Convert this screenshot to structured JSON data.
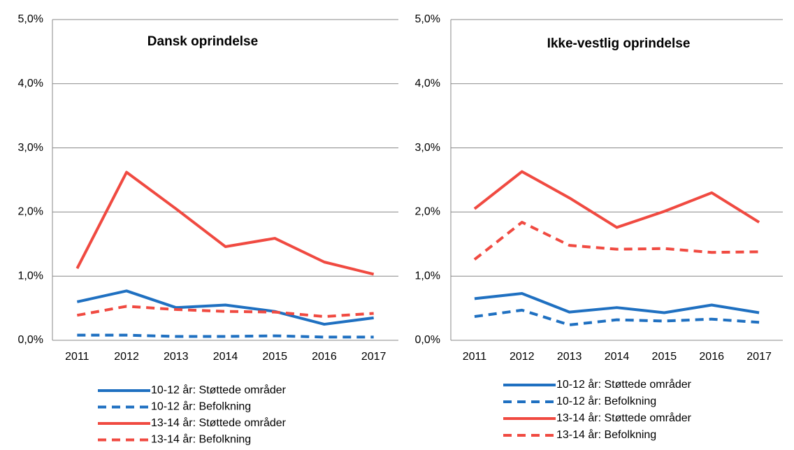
{
  "chart_data": [
    {
      "type": "line",
      "title": "Dansk oprindelse",
      "categories": [
        "2011",
        "2012",
        "2013",
        "2014",
        "2015",
        "2016",
        "2017"
      ],
      "series": [
        {
          "name": "10-12 år: Støttede områder",
          "color": "#1f70c1",
          "dashed": false,
          "values": [
            0.6,
            0.77,
            0.51,
            0.55,
            0.45,
            0.25,
            0.35
          ]
        },
        {
          "name": "10-12 år: Befolkning",
          "color": "#1f70c1",
          "dashed": true,
          "values": [
            0.08,
            0.08,
            0.06,
            0.06,
            0.07,
            0.05,
            0.05
          ]
        },
        {
          "name": "13-14 år: Støttede områder",
          "color": "#f04a41",
          "dashed": false,
          "values": [
            1.12,
            2.62,
            2.05,
            1.46,
            1.59,
            1.22,
            1.03
          ]
        },
        {
          "name": "13-14 år: Befolkning",
          "color": "#f04a41",
          "dashed": true,
          "values": [
            0.39,
            0.53,
            0.48,
            0.45,
            0.44,
            0.37,
            0.42
          ]
        }
      ],
      "ylim": [
        0,
        5
      ],
      "yticks": [
        {
          "value": 0,
          "label": "0,0%"
        },
        {
          "value": 1,
          "label": "1,0%"
        },
        {
          "value": 2,
          "label": "2,0%"
        },
        {
          "value": 3,
          "label": "3,0%"
        },
        {
          "value": 4,
          "label": "4,0%"
        },
        {
          "value": 5,
          "label": "5,0%"
        }
      ],
      "grid": true,
      "legend": "bottom"
    },
    {
      "type": "line",
      "title": "Ikke-vestlig oprindelse",
      "categories": [
        "2011",
        "2012",
        "2013",
        "2014",
        "2015",
        "2016",
        "2017"
      ],
      "series": [
        {
          "name": "10-12 år: Støttede områder",
          "color": "#1f70c1",
          "dashed": false,
          "values": [
            0.65,
            0.73,
            0.44,
            0.51,
            0.43,
            0.55,
            0.43
          ]
        },
        {
          "name": "10-12 år: Befolkning",
          "color": "#1f70c1",
          "dashed": true,
          "values": [
            0.37,
            0.47,
            0.24,
            0.32,
            0.3,
            0.33,
            0.28
          ]
        },
        {
          "name": "13-14 år: Støttede områder",
          "color": "#f04a41",
          "dashed": false,
          "values": [
            2.05,
            2.63,
            2.22,
            1.76,
            2.01,
            2.3,
            1.84
          ]
        },
        {
          "name": "13-14 år: Befolkning",
          "color": "#f04a41",
          "dashed": true,
          "values": [
            1.26,
            1.84,
            1.48,
            1.42,
            1.43,
            1.37,
            1.38
          ]
        }
      ],
      "ylim": [
        0,
        5
      ],
      "yticks": [
        {
          "value": 0,
          "label": "0,0%"
        },
        {
          "value": 1,
          "label": "1,0%"
        },
        {
          "value": 2,
          "label": "2,0%"
        },
        {
          "value": 3,
          "label": "3,0%"
        },
        {
          "value": 4,
          "label": "4,0%"
        },
        {
          "value": 5,
          "label": "5,0%"
        }
      ],
      "grid": true,
      "legend": "bottom"
    }
  ]
}
